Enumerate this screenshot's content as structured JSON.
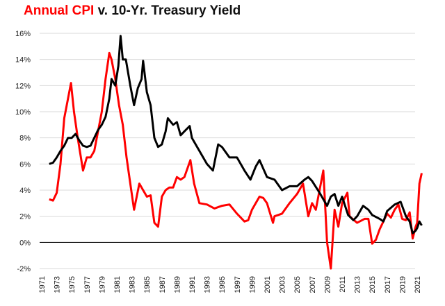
{
  "chart_data": {
    "type": "line",
    "title_part1": "Annual CPI",
    "title_part2": "v. 10-Yr. Treasury Yield",
    "ylim": [
      -2,
      16
    ],
    "yticks": [
      "-2%",
      "0%",
      "2%",
      "4%",
      "6%",
      "8%",
      "10%",
      "12%",
      "14%",
      "16%"
    ],
    "ytick_values": [
      -2,
      0,
      2,
      4,
      6,
      8,
      10,
      12,
      14,
      16
    ],
    "xticks": [
      "1971",
      "1973",
      "1975",
      "1977",
      "1979",
      "1981",
      "1983",
      "1985",
      "1987",
      "1989",
      "1991",
      "1993",
      "1995",
      "1997",
      "1999",
      "2001",
      "2003",
      "2005",
      "2007",
      "2009",
      "2011",
      "2013",
      "2015",
      "2017",
      "2019",
      "2021"
    ],
    "xlim": [
      1971,
      2021.5
    ],
    "grid": true,
    "series": [
      {
        "id": "cpi",
        "color": "#ff0000",
        "x": [
          1972,
          1972.5,
          1973,
          1973.5,
          1974,
          1974.5,
          1974.9,
          1975.3,
          1975.8,
          1976.5,
          1977,
          1977.5,
          1978,
          1978.5,
          1979,
          1979.5,
          1980,
          1980.3,
          1980.8,
          1981.3,
          1981.8,
          1982.3,
          1982.8,
          1983.3,
          1984,
          1984.5,
          1985,
          1985.5,
          1986,
          1986.5,
          1987,
          1987.5,
          1988,
          1988.5,
          1989,
          1989.5,
          1990,
          1990.8,
          1991.3,
          1992,
          1993,
          1994,
          1995,
          1996,
          1997,
          1998,
          1998.5,
          1999,
          2000,
          2000.5,
          2001,
          2001.8,
          2002,
          2003,
          2004,
          2005,
          2005.8,
          2006.5,
          2007,
          2007.5,
          2008,
          2008.5,
          2009,
          2009.5,
          2010,
          2010.5,
          2011,
          2011.7,
          2012,
          2013,
          2014,
          2014.5,
          2015,
          2015.5,
          2016,
          2017,
          2017.5,
          2018,
          2018.5,
          2019,
          2019.5,
          2020,
          2020.4,
          2020.8,
          2021,
          2021.3,
          2021.6
        ],
        "y": [
          3.3,
          3.2,
          3.8,
          6.0,
          9.5,
          11.0,
          12.2,
          10.0,
          8.0,
          5.5,
          6.5,
          6.5,
          7.0,
          8.5,
          10.0,
          12.5,
          14.5,
          14.0,
          12.5,
          10.5,
          9.0,
          6.5,
          4.5,
          2.5,
          4.5,
          4.0,
          3.5,
          3.6,
          1.5,
          1.2,
          3.5,
          4.0,
          4.2,
          4.2,
          5.0,
          4.8,
          5.0,
          6.3,
          4.5,
          3.0,
          2.9,
          2.6,
          2.8,
          2.9,
          2.2,
          1.6,
          1.7,
          2.5,
          3.5,
          3.4,
          3.0,
          1.5,
          2.0,
          2.2,
          3.0,
          3.7,
          4.5,
          2.0,
          3.0,
          2.5,
          4.0,
          5.5,
          0.0,
          -2.0,
          2.5,
          1.2,
          3.0,
          3.8,
          2.0,
          1.5,
          1.8,
          1.8,
          -0.1,
          0.2,
          1.0,
          2.2,
          1.9,
          2.5,
          2.9,
          1.8,
          1.7,
          2.3,
          0.3,
          1.2,
          1.5,
          4.5,
          5.3
        ]
      },
      {
        "id": "yield",
        "color": "#000000",
        "x": [
          1972,
          1972.5,
          1973,
          1973.5,
          1974,
          1974.5,
          1975,
          1975.5,
          1976,
          1976.5,
          1977,
          1977.5,
          1978,
          1978.5,
          1979,
          1979.5,
          1980,
          1980.3,
          1980.8,
          1981.2,
          1981.5,
          1981.8,
          1982.2,
          1982.8,
          1983.3,
          1983.8,
          1984.3,
          1984.5,
          1985,
          1985.5,
          1986,
          1986.5,
          1987,
          1987.5,
          1987.8,
          1988.5,
          1989,
          1989.5,
          1990,
          1990.7,
          1991,
          1992,
          1993,
          1993.8,
          1994.5,
          1995,
          1996,
          1997,
          1998,
          1998.8,
          1999.5,
          2000,
          2001,
          2002,
          2003,
          2004,
          2005,
          2006,
          2006.5,
          2007,
          2008,
          2008.8,
          2009,
          2009.5,
          2010,
          2010.5,
          2011,
          2011.8,
          2012.5,
          2013,
          2013.8,
          2014.5,
          2015,
          2016,
          2016.5,
          2017,
          2018,
          2018.8,
          2019.5,
          2020,
          2020.4,
          2020.8,
          2021,
          2021.3,
          2021.6
        ],
        "y": [
          6.0,
          6.1,
          6.5,
          7.0,
          7.4,
          8.0,
          8.0,
          8.3,
          7.8,
          7.4,
          7.3,
          7.4,
          8.0,
          8.6,
          9.0,
          9.6,
          11.0,
          12.5,
          12.0,
          13.5,
          15.8,
          14.0,
          14.0,
          12.0,
          10.5,
          11.8,
          12.5,
          13.9,
          11.5,
          10.5,
          8.0,
          7.3,
          7.5,
          8.5,
          9.5,
          9.0,
          9.2,
          8.2,
          8.5,
          8.9,
          8.0,
          7.0,
          6.0,
          5.5,
          7.5,
          7.3,
          6.5,
          6.5,
          5.5,
          4.8,
          5.8,
          6.3,
          5.0,
          4.8,
          4.0,
          4.3,
          4.3,
          4.8,
          5.0,
          4.7,
          3.8,
          3.0,
          2.8,
          3.5,
          3.7,
          2.8,
          3.5,
          2.1,
          1.7,
          2.0,
          2.8,
          2.5,
          2.1,
          1.8,
          1.6,
          2.4,
          2.9,
          3.1,
          2.0,
          1.6,
          0.7,
          0.9,
          1.1,
          1.6,
          1.3
        ]
      }
    ]
  }
}
